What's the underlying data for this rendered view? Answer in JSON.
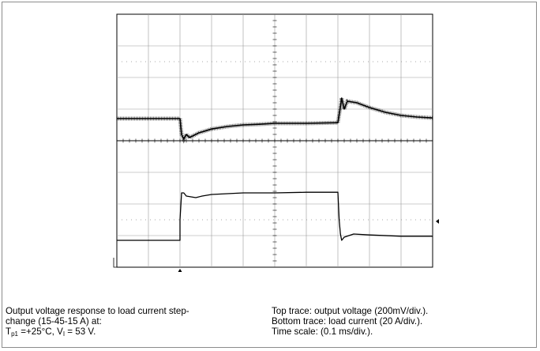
{
  "chart_data": {
    "type": "line",
    "title": "",
    "xlabel": "",
    "ylabel": "",
    "grid": true,
    "divisions": {
      "x": 10,
      "y": 8
    },
    "x_unit": "ms",
    "x_range": [
      0,
      1.0
    ],
    "y_range_div": [
      0,
      8
    ],
    "series": [
      {
        "points": [
          [
            0,
            4.7
          ],
          [
            0.2,
            4.7
          ],
          [
            0.205,
            4.2
          ],
          [
            0.212,
            4.05
          ],
          [
            0.22,
            4.2
          ],
          [
            0.23,
            4.1
          ],
          [
            0.26,
            4.25
          ],
          [
            0.3,
            4.37
          ],
          [
            0.35,
            4.45
          ],
          [
            0.4,
            4.5
          ],
          [
            0.45,
            4.52
          ],
          [
            0.5,
            4.55
          ],
          [
            0.6,
            4.55
          ],
          [
            0.7,
            4.57
          ],
          [
            0.706,
            4.95
          ],
          [
            0.712,
            5.35
          ],
          [
            0.72,
            5.0
          ],
          [
            0.73,
            5.25
          ],
          [
            0.76,
            5.2
          ],
          [
            0.8,
            5.05
          ],
          [
            0.85,
            4.9
          ],
          [
            0.9,
            4.8
          ],
          [
            0.95,
            4.75
          ],
          [
            1.0,
            4.72
          ]
        ]
      },
      {
        "points": [
          [
            0,
            0.85
          ],
          [
            0.2,
            0.85
          ],
          [
            0.2,
            1.5
          ],
          [
            0.205,
            2.35
          ],
          [
            0.212,
            2.35
          ],
          [
            0.22,
            2.25
          ],
          [
            0.25,
            2.2
          ],
          [
            0.27,
            2.25
          ],
          [
            0.3,
            2.3
          ],
          [
            0.4,
            2.35
          ],
          [
            0.5,
            2.35
          ],
          [
            0.6,
            2.37
          ],
          [
            0.7,
            2.37
          ],
          [
            0.704,
            1.5
          ],
          [
            0.708,
            1.05
          ],
          [
            0.712,
            0.85
          ],
          [
            0.72,
            0.95
          ],
          [
            0.75,
            1.05
          ],
          [
            0.8,
            1.02
          ],
          [
            0.9,
            0.98
          ],
          [
            1.0,
            0.98
          ]
        ]
      }
    ],
    "markers": {
      "ground": "c2"
    }
  },
  "caption": {
    "left_line1": "Output voltage response to load current step-",
    "left_line2": "change (15-45-15 A) at:",
    "left_line3_a": "T",
    "left_line3_sub1": "p1",
    "left_line3_b": " =+25°C, V",
    "left_line3_sub2": "I",
    "left_line3_c": " = 53 V.",
    "right_line1": "Top trace: output voltage (200mV/div.).",
    "right_line2": "Bottom trace: load current (20 A/div.).",
    "right_line3": "Time scale: (0.1 ms/div.)."
  }
}
